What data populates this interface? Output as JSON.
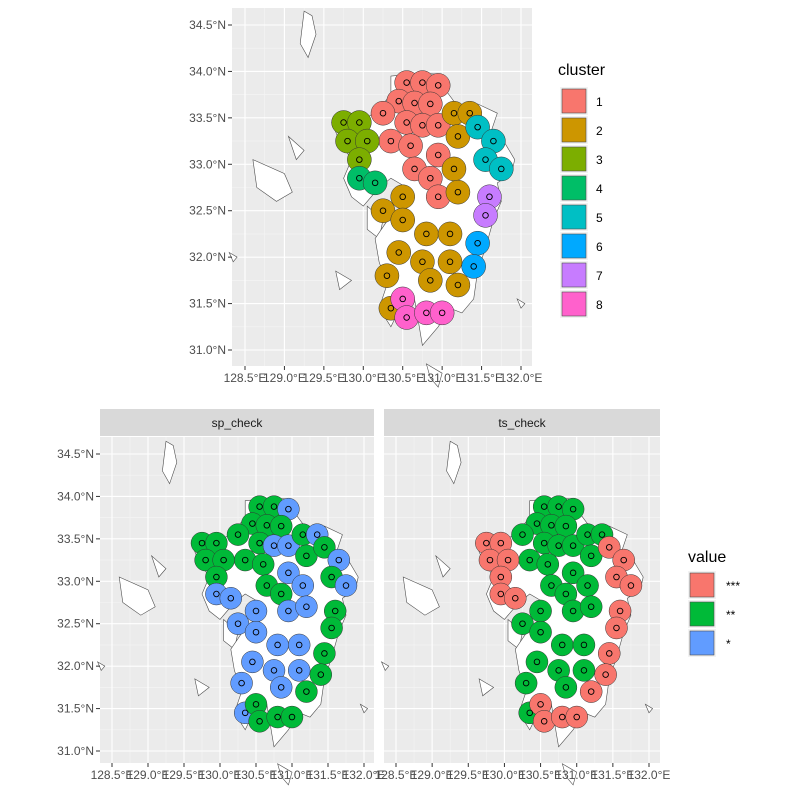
{
  "top_map": {
    "lat_ticks": [
      "34.5°N",
      "34.0°N",
      "33.5°N",
      "33.0°N",
      "32.5°N",
      "32.0°N",
      "31.5°N",
      "31.0°N"
    ],
    "lon_ticks": [
      "128.5°E",
      "129.0°E",
      "129.5°E",
      "130.0°E",
      "130.5°E",
      "131.0°E",
      "131.5°E",
      "132.0°E"
    ]
  },
  "bottom_map": {
    "lat_ticks": [
      "34.5°N",
      "34.0°N",
      "33.5°N",
      "33.0°N",
      "32.5°N",
      "32.0°N",
      "31.5°N",
      "31.0°N"
    ],
    "lon_ticks": [
      "128.5°E",
      "129.0°E",
      "129.5°E",
      "130.0°E",
      "130.5°E",
      "131.0°E",
      "131.5°E",
      "132.0°E"
    ],
    "panels": [
      {
        "strip": "sp_check"
      },
      {
        "strip": "ts_check"
      }
    ]
  },
  "legend_cluster": {
    "title": "cluster",
    "items": [
      {
        "label": "1",
        "color": "#F8766D"
      },
      {
        "label": "2",
        "color": "#CD9600"
      },
      {
        "label": "3",
        "color": "#7CAE00"
      },
      {
        "label": "4",
        "color": "#00BE67"
      },
      {
        "label": "5",
        "color": "#00BFC4"
      },
      {
        "label": "6",
        "color": "#00A9FF"
      },
      {
        "label": "7",
        "color": "#C77CFF"
      },
      {
        "label": "8",
        "color": "#FF61CC"
      }
    ]
  },
  "legend_value": {
    "title": "value",
    "items": [
      {
        "label": "***",
        "color": "#F8766D"
      },
      {
        "label": "**",
        "color": "#00BA38"
      },
      {
        "label": "*",
        "color": "#619CFF"
      }
    ]
  },
  "chart_data": [
    {
      "type": "scatter",
      "facet": "",
      "xlim": [
        128.3,
        132.1
      ],
      "ylim": [
        30.9,
        34.65
      ],
      "grid": true,
      "legend": "right",
      "points": [
        {
          "x": 130.55,
          "y": 33.88,
          "g": 1
        },
        {
          "x": 130.75,
          "y": 33.88,
          "g": 1
        },
        {
          "x": 130.95,
          "y": 33.85,
          "g": 1
        },
        {
          "x": 130.45,
          "y": 33.68,
          "g": 1
        },
        {
          "x": 130.65,
          "y": 33.66,
          "g": 1
        },
        {
          "x": 130.85,
          "y": 33.65,
          "g": 1
        },
        {
          "x": 130.25,
          "y": 33.55,
          "g": 1
        },
        {
          "x": 130.55,
          "y": 33.45,
          "g": 1
        },
        {
          "x": 130.75,
          "y": 33.42,
          "g": 1
        },
        {
          "x": 130.95,
          "y": 33.42,
          "g": 1
        },
        {
          "x": 130.35,
          "y": 33.25,
          "g": 1
        },
        {
          "x": 130.6,
          "y": 33.2,
          "g": 1
        },
        {
          "x": 130.95,
          "y": 33.1,
          "g": 1
        },
        {
          "x": 130.65,
          "y": 32.95,
          "g": 1
        },
        {
          "x": 130.85,
          "y": 32.85,
          "g": 1
        },
        {
          "x": 130.95,
          "y": 32.65,
          "g": 1
        },
        {
          "x": 131.15,
          "y": 33.55,
          "g": 2
        },
        {
          "x": 131.35,
          "y": 33.55,
          "g": 2
        },
        {
          "x": 131.2,
          "y": 33.3,
          "g": 2
        },
        {
          "x": 131.15,
          "y": 32.95,
          "g": 2
        },
        {
          "x": 131.2,
          "y": 32.7,
          "g": 2
        },
        {
          "x": 130.5,
          "y": 32.65,
          "g": 2
        },
        {
          "x": 130.25,
          "y": 32.5,
          "g": 2
        },
        {
          "x": 130.5,
          "y": 32.4,
          "g": 2
        },
        {
          "x": 130.8,
          "y": 32.25,
          "g": 2
        },
        {
          "x": 131.1,
          "y": 32.25,
          "g": 2
        },
        {
          "x": 130.45,
          "y": 32.05,
          "g": 2
        },
        {
          "x": 130.75,
          "y": 31.95,
          "g": 2
        },
        {
          "x": 131.1,
          "y": 31.95,
          "g": 2
        },
        {
          "x": 130.3,
          "y": 31.8,
          "g": 2
        },
        {
          "x": 130.85,
          "y": 31.75,
          "g": 2
        },
        {
          "x": 131.2,
          "y": 31.7,
          "g": 2
        },
        {
          "x": 130.35,
          "y": 31.45,
          "g": 2
        },
        {
          "x": 129.75,
          "y": 33.45,
          "g": 3
        },
        {
          "x": 129.95,
          "y": 33.45,
          "g": 3
        },
        {
          "x": 129.8,
          "y": 33.25,
          "g": 3
        },
        {
          "x": 130.05,
          "y": 33.25,
          "g": 3
        },
        {
          "x": 129.95,
          "y": 33.05,
          "g": 3
        },
        {
          "x": 129.95,
          "y": 32.85,
          "g": 4
        },
        {
          "x": 130.15,
          "y": 32.8,
          "g": 4
        },
        {
          "x": 131.45,
          "y": 33.4,
          "g": 5
        },
        {
          "x": 131.65,
          "y": 33.25,
          "g": 5
        },
        {
          "x": 131.55,
          "y": 33.05,
          "g": 5
        },
        {
          "x": 131.75,
          "y": 32.95,
          "g": 5
        },
        {
          "x": 131.45,
          "y": 32.15,
          "g": 6
        },
        {
          "x": 131.4,
          "y": 31.9,
          "g": 6
        },
        {
          "x": 131.6,
          "y": 32.65,
          "g": 7
        },
        {
          "x": 131.55,
          "y": 32.45,
          "g": 7
        },
        {
          "x": 130.5,
          "y": 31.55,
          "g": 8
        },
        {
          "x": 130.55,
          "y": 31.35,
          "g": 8
        },
        {
          "x": 130.8,
          "y": 31.4,
          "g": 8
        },
        {
          "x": 131.0,
          "y": 31.4,
          "g": 8
        }
      ]
    },
    {
      "type": "scatter",
      "facet": "sp_check",
      "xlim": [
        128.3,
        132.1
      ],
      "ylim": [
        30.9,
        34.65
      ],
      "grid": true,
      "legend": "right",
      "points": [
        {
          "x": 130.55,
          "y": 33.88,
          "g": "**"
        },
        {
          "x": 130.75,
          "y": 33.88,
          "g": "**"
        },
        {
          "x": 130.95,
          "y": 33.85,
          "g": "*"
        },
        {
          "x": 130.45,
          "y": 33.68,
          "g": "**"
        },
        {
          "x": 130.65,
          "y": 33.66,
          "g": "**"
        },
        {
          "x": 130.85,
          "y": 33.65,
          "g": "**"
        },
        {
          "x": 130.25,
          "y": 33.55,
          "g": "**"
        },
        {
          "x": 130.55,
          "y": 33.45,
          "g": "**"
        },
        {
          "x": 130.75,
          "y": 33.42,
          "g": "*"
        },
        {
          "x": 130.95,
          "y": 33.42,
          "g": "*"
        },
        {
          "x": 130.35,
          "y": 33.25,
          "g": "**"
        },
        {
          "x": 130.6,
          "y": 33.2,
          "g": "**"
        },
        {
          "x": 130.95,
          "y": 33.1,
          "g": "*"
        },
        {
          "x": 130.65,
          "y": 32.95,
          "g": "**"
        },
        {
          "x": 130.85,
          "y": 32.85,
          "g": "**"
        },
        {
          "x": 130.95,
          "y": 32.65,
          "g": "*"
        },
        {
          "x": 131.15,
          "y": 33.55,
          "g": "**"
        },
        {
          "x": 131.35,
          "y": 33.55,
          "g": "*"
        },
        {
          "x": 131.2,
          "y": 33.3,
          "g": "**"
        },
        {
          "x": 131.15,
          "y": 32.95,
          "g": "*"
        },
        {
          "x": 131.2,
          "y": 32.7,
          "g": "*"
        },
        {
          "x": 130.5,
          "y": 32.65,
          "g": "*"
        },
        {
          "x": 130.25,
          "y": 32.5,
          "g": "*"
        },
        {
          "x": 130.5,
          "y": 32.4,
          "g": "*"
        },
        {
          "x": 130.8,
          "y": 32.25,
          "g": "*"
        },
        {
          "x": 131.1,
          "y": 32.25,
          "g": "*"
        },
        {
          "x": 130.45,
          "y": 32.05,
          "g": "*"
        },
        {
          "x": 130.75,
          "y": 31.95,
          "g": "*"
        },
        {
          "x": 131.1,
          "y": 31.95,
          "g": "*"
        },
        {
          "x": 130.3,
          "y": 31.8,
          "g": "*"
        },
        {
          "x": 130.85,
          "y": 31.75,
          "g": "*"
        },
        {
          "x": 131.2,
          "y": 31.7,
          "g": "**"
        },
        {
          "x": 130.35,
          "y": 31.45,
          "g": "*"
        },
        {
          "x": 129.75,
          "y": 33.45,
          "g": "**"
        },
        {
          "x": 129.95,
          "y": 33.45,
          "g": "**"
        },
        {
          "x": 129.8,
          "y": 33.25,
          "g": "**"
        },
        {
          "x": 130.05,
          "y": 33.25,
          "g": "**"
        },
        {
          "x": 129.95,
          "y": 33.05,
          "g": "**"
        },
        {
          "x": 129.95,
          "y": 32.85,
          "g": "*"
        },
        {
          "x": 130.15,
          "y": 32.8,
          "g": "*"
        },
        {
          "x": 131.45,
          "y": 33.4,
          "g": "**"
        },
        {
          "x": 131.65,
          "y": 33.25,
          "g": "*"
        },
        {
          "x": 131.55,
          "y": 33.05,
          "g": "**"
        },
        {
          "x": 131.75,
          "y": 32.95,
          "g": "*"
        },
        {
          "x": 131.45,
          "y": 32.15,
          "g": "**"
        },
        {
          "x": 131.4,
          "y": 31.9,
          "g": "**"
        },
        {
          "x": 131.6,
          "y": 32.65,
          "g": "**"
        },
        {
          "x": 131.55,
          "y": 32.45,
          "g": "**"
        },
        {
          "x": 130.5,
          "y": 31.55,
          "g": "**"
        },
        {
          "x": 130.55,
          "y": 31.35,
          "g": "**"
        },
        {
          "x": 130.8,
          "y": 31.4,
          "g": "**"
        },
        {
          "x": 131.0,
          "y": 31.4,
          "g": "**"
        }
      ]
    },
    {
      "type": "scatter",
      "facet": "ts_check",
      "xlim": [
        128.3,
        132.1
      ],
      "ylim": [
        30.9,
        34.65
      ],
      "grid": true,
      "legend": "right",
      "points": [
        {
          "x": 130.55,
          "y": 33.88,
          "g": "**"
        },
        {
          "x": 130.75,
          "y": 33.88,
          "g": "**"
        },
        {
          "x": 130.95,
          "y": 33.85,
          "g": "**"
        },
        {
          "x": 130.45,
          "y": 33.68,
          "g": "**"
        },
        {
          "x": 130.65,
          "y": 33.66,
          "g": "**"
        },
        {
          "x": 130.85,
          "y": 33.65,
          "g": "**"
        },
        {
          "x": 130.25,
          "y": 33.55,
          "g": "**"
        },
        {
          "x": 130.55,
          "y": 33.45,
          "g": "**"
        },
        {
          "x": 130.75,
          "y": 33.42,
          "g": "**"
        },
        {
          "x": 130.95,
          "y": 33.42,
          "g": "**"
        },
        {
          "x": 130.35,
          "y": 33.25,
          "g": "**"
        },
        {
          "x": 130.6,
          "y": 33.2,
          "g": "**"
        },
        {
          "x": 130.95,
          "y": 33.1,
          "g": "**"
        },
        {
          "x": 130.65,
          "y": 32.95,
          "g": "**"
        },
        {
          "x": 130.85,
          "y": 32.85,
          "g": "**"
        },
        {
          "x": 130.95,
          "y": 32.65,
          "g": "**"
        },
        {
          "x": 131.15,
          "y": 33.55,
          "g": "**"
        },
        {
          "x": 131.35,
          "y": 33.55,
          "g": "**"
        },
        {
          "x": 131.2,
          "y": 33.3,
          "g": "**"
        },
        {
          "x": 131.15,
          "y": 32.95,
          "g": "**"
        },
        {
          "x": 131.2,
          "y": 32.7,
          "g": "**"
        },
        {
          "x": 130.5,
          "y": 32.65,
          "g": "**"
        },
        {
          "x": 130.25,
          "y": 32.5,
          "g": "**"
        },
        {
          "x": 130.5,
          "y": 32.4,
          "g": "**"
        },
        {
          "x": 130.8,
          "y": 32.25,
          "g": "**"
        },
        {
          "x": 131.1,
          "y": 32.25,
          "g": "**"
        },
        {
          "x": 130.45,
          "y": 32.05,
          "g": "**"
        },
        {
          "x": 130.75,
          "y": 31.95,
          "g": "**"
        },
        {
          "x": 131.1,
          "y": 31.95,
          "g": "**"
        },
        {
          "x": 130.3,
          "y": 31.8,
          "g": "**"
        },
        {
          "x": 130.85,
          "y": 31.75,
          "g": "**"
        },
        {
          "x": 131.2,
          "y": 31.7,
          "g": "***"
        },
        {
          "x": 130.35,
          "y": 31.45,
          "g": "**"
        },
        {
          "x": 129.75,
          "y": 33.45,
          "g": "***"
        },
        {
          "x": 129.95,
          "y": 33.45,
          "g": "***"
        },
        {
          "x": 129.8,
          "y": 33.25,
          "g": "***"
        },
        {
          "x": 130.05,
          "y": 33.25,
          "g": "***"
        },
        {
          "x": 129.95,
          "y": 33.05,
          "g": "***"
        },
        {
          "x": 129.95,
          "y": 32.85,
          "g": "***"
        },
        {
          "x": 130.15,
          "y": 32.8,
          "g": "***"
        },
        {
          "x": 131.45,
          "y": 33.4,
          "g": "***"
        },
        {
          "x": 131.65,
          "y": 33.25,
          "g": "***"
        },
        {
          "x": 131.55,
          "y": 33.05,
          "g": "***"
        },
        {
          "x": 131.75,
          "y": 32.95,
          "g": "***"
        },
        {
          "x": 131.45,
          "y": 32.15,
          "g": "***"
        },
        {
          "x": 131.4,
          "y": 31.9,
          "g": "***"
        },
        {
          "x": 131.6,
          "y": 32.65,
          "g": "***"
        },
        {
          "x": 131.55,
          "y": 32.45,
          "g": "***"
        },
        {
          "x": 130.5,
          "y": 31.55,
          "g": "***"
        },
        {
          "x": 130.55,
          "y": 31.35,
          "g": "***"
        },
        {
          "x": 130.8,
          "y": 31.4,
          "g": "***"
        },
        {
          "x": 131.0,
          "y": 31.4,
          "g": "***"
        }
      ]
    }
  ]
}
